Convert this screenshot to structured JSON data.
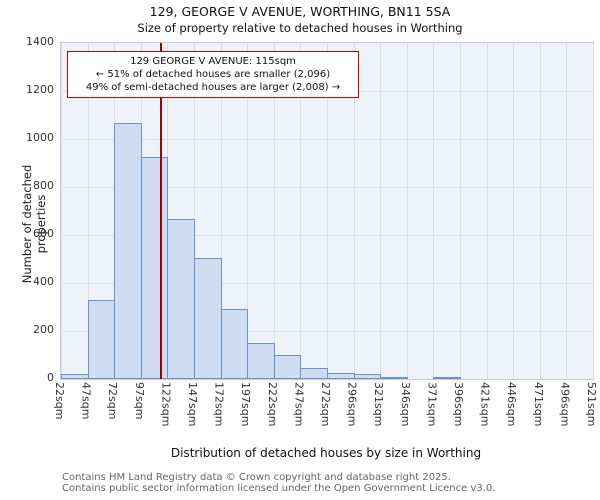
{
  "title": "129, GEORGE V AVENUE, WORTHING, BN11 5SA",
  "subtitle": "Size of property relative to detached houses in Worthing",
  "annotation": {
    "line1": "129 GEORGE V AVENUE: 115sqm",
    "line2": "← 51% of detached houses are smaller (2,096)",
    "line3": "49% of semi-detached houses are larger (2,008) →"
  },
  "footer": {
    "line1": "Contains HM Land Registry data © Crown copyright and database right 2025.",
    "line2": "Contains public sector information licensed under the Open Government Licence v3.0."
  },
  "chart_data": {
    "type": "bar",
    "title": "129, GEORGE V AVENUE, WORTHING, BN11 5SA",
    "subtitle": "Size of property relative to detached houses in Worthing",
    "xlabel": "Distribution of detached houses by size in Worthing",
    "ylabel": "Number of detached properties",
    "ylim": [
      0,
      1400
    ],
    "ytick_step": 200,
    "grid": true,
    "bin_labels": [
      "22sqm",
      "47sqm",
      "72sqm",
      "97sqm",
      "122sqm",
      "147sqm",
      "172sqm",
      "197sqm",
      "222sqm",
      "247sqm",
      "272sqm",
      "296sqm",
      "321sqm",
      "346sqm",
      "371sqm",
      "396sqm",
      "421sqm",
      "446sqm",
      "471sqm",
      "496sqm",
      "521sqm"
    ],
    "values": [
      20,
      330,
      1065,
      925,
      665,
      505,
      290,
      150,
      100,
      45,
      25,
      20,
      10,
      0,
      5,
      0,
      0,
      0,
      0,
      0
    ],
    "marker": {
      "value_sqm": 115,
      "color": "#a00000",
      "label": "115sqm"
    },
    "bar_fill": "#cfdcf1",
    "bar_border": "#6d94c9"
  }
}
